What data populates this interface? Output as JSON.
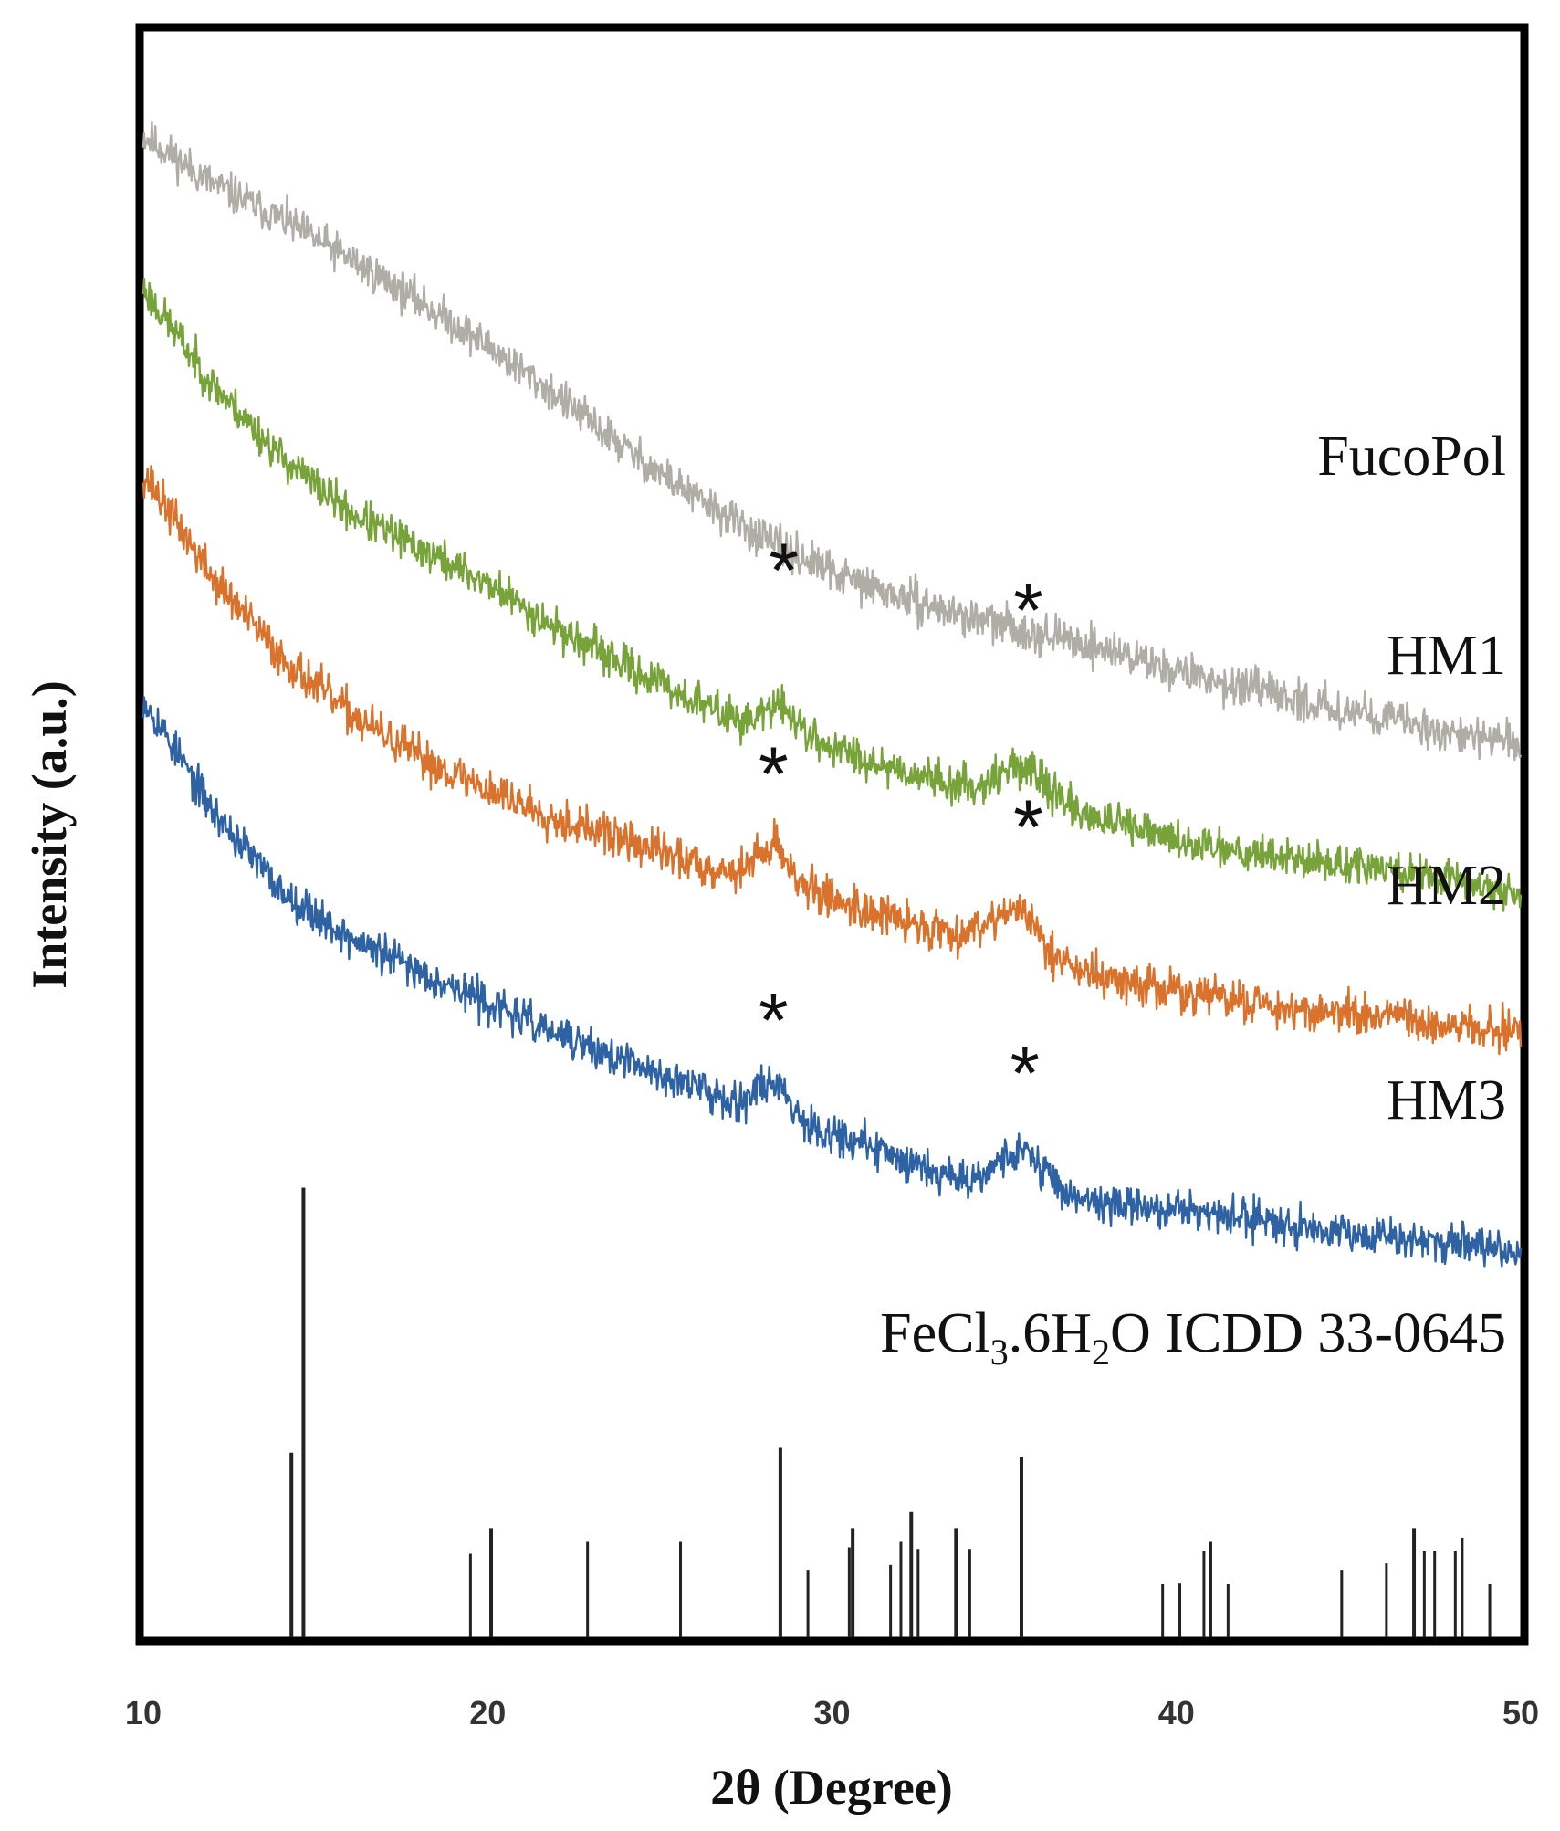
{
  "chart_data": {
    "type": "line",
    "title": "",
    "xlabel": "2θ (Degree)",
    "ylabel": "Intensity (a.u.)",
    "xlim": [
      10,
      50
    ],
    "ylim": [
      0,
      100
    ],
    "x_ticks": [
      10,
      20,
      30,
      40,
      50
    ],
    "x_tick_labels": [
      "10",
      "20",
      "30",
      "40",
      "50"
    ],
    "grid": false,
    "series": [
      {
        "name": "FucoPol",
        "label": "FucoPol",
        "color": "#b0ada6",
        "noise": 1.2,
        "seed": 11,
        "baseline": [
          [
            10,
            93.5
          ],
          [
            12,
            90.5
          ],
          [
            14,
            88.3
          ],
          [
            16,
            85.8
          ],
          [
            18,
            83.2
          ],
          [
            20,
            80.4
          ],
          [
            22,
            77.3
          ],
          [
            24,
            74.0
          ],
          [
            26,
            71.0
          ],
          [
            28,
            68.4
          ],
          [
            30,
            66.3
          ],
          [
            32,
            64.7
          ],
          [
            34,
            63.5
          ],
          [
            36,
            62.5
          ],
          [
            38,
            61.5
          ],
          [
            40,
            60.2
          ],
          [
            42,
            59.1
          ],
          [
            44,
            58.1
          ],
          [
            46,
            57.3
          ],
          [
            48,
            56.3
          ],
          [
            50,
            55.6
          ]
        ],
        "peaks": []
      },
      {
        "name": "HM1",
        "label": "HM1",
        "color": "#77a33a",
        "noise": 1.2,
        "seed": 23,
        "baseline": [
          [
            10,
            84.0
          ],
          [
            12,
            78.0
          ],
          [
            14,
            73.5
          ],
          [
            16,
            70.0
          ],
          [
            18,
            67.8
          ],
          [
            20,
            65.6
          ],
          [
            22,
            62.8
          ],
          [
            24,
            60.5
          ],
          [
            26,
            58.3
          ],
          [
            28,
            56.4
          ],
          [
            30,
            55.4
          ],
          [
            32,
            54.0
          ],
          [
            34,
            52.8
          ],
          [
            36,
            52.1
          ],
          [
            38,
            50.8
          ],
          [
            40,
            49.6
          ],
          [
            42,
            49.0
          ],
          [
            44,
            48.3
          ],
          [
            46,
            47.8
          ],
          [
            48,
            47.2
          ],
          [
            50,
            46.3
          ]
        ],
        "peaks": [
          {
            "x": 28.5,
            "height": 1.8,
            "width": 0.5
          },
          {
            "x": 35.5,
            "height": 1.9,
            "width": 0.7
          }
        ]
      },
      {
        "name": "HM2",
        "label": "HM2",
        "color": "#d8722c",
        "noise": 1.3,
        "seed": 37,
        "baseline": [
          [
            10,
            72.5
          ],
          [
            12,
            66.0
          ],
          [
            14,
            61.0
          ],
          [
            16,
            57.5
          ],
          [
            18,
            54.8
          ],
          [
            20,
            52.8
          ],
          [
            22,
            51.0
          ],
          [
            24,
            49.6
          ],
          [
            26,
            48.2
          ],
          [
            28,
            47.2
          ],
          [
            30,
            46.0
          ],
          [
            32,
            44.6
          ],
          [
            34,
            43.6
          ],
          [
            36,
            42.2
          ],
          [
            38,
            41.0
          ],
          [
            40,
            40.2
          ],
          [
            42,
            39.6
          ],
          [
            44,
            39.0
          ],
          [
            46,
            38.6
          ],
          [
            48,
            38.0
          ],
          [
            50,
            37.8
          ]
        ],
        "peaks": [
          {
            "x": 28.3,
            "height": 2.3,
            "width": 0.45
          },
          {
            "x": 35.3,
            "height": 2.6,
            "width": 0.7
          }
        ]
      },
      {
        "name": "HM3",
        "label": "HM3",
        "color": "#2e62a3",
        "noise": 1.2,
        "seed": 53,
        "baseline": [
          [
            10,
            58.5
          ],
          [
            12,
            51.5
          ],
          [
            14,
            46.5
          ],
          [
            16,
            43.5
          ],
          [
            18,
            41.5
          ],
          [
            20,
            39.5
          ],
          [
            22,
            37.5
          ],
          [
            24,
            35.8
          ],
          [
            26,
            34.3
          ],
          [
            28,
            32.8
          ],
          [
            30,
            31.4
          ],
          [
            32,
            29.8
          ],
          [
            34,
            28.4
          ],
          [
            36,
            27.6
          ],
          [
            38,
            27.0
          ],
          [
            40,
            26.6
          ],
          [
            42,
            26.1
          ],
          [
            44,
            25.6
          ],
          [
            46,
            25.0
          ],
          [
            48,
            24.6
          ],
          [
            50,
            24.0
          ]
        ],
        "peaks": [
          {
            "x": 28.3,
            "height": 2.0,
            "width": 0.45
          },
          {
            "x": 35.5,
            "height": 2.4,
            "width": 0.7
          }
        ]
      }
    ],
    "annotations": [
      {
        "text": "*",
        "x": 28.6,
        "y": 66.5
      },
      {
        "text": "*",
        "x": 35.7,
        "y": 64.0
      },
      {
        "text": "*",
        "x": 28.3,
        "y": 53.8
      },
      {
        "text": "*",
        "x": 35.7,
        "y": 50.5
      },
      {
        "text": "*",
        "x": 28.3,
        "y": 38.5
      },
      {
        "text": "*",
        "x": 35.6,
        "y": 35.2
      }
    ],
    "reference": {
      "name": "FeCl3.6H2O ICDD 33-0645",
      "label_parts": [
        "FeCl",
        "3",
        ".6H",
        "2",
        "O ICDD 33-0645"
      ],
      "color": "#222222",
      "lines": [
        {
          "x": 14.3,
          "h": 11.5
        },
        {
          "x": 14.65,
          "h": 28.0
        },
        {
          "x": 19.5,
          "h": 5.2
        },
        {
          "x": 20.1,
          "h": 6.8
        },
        {
          "x": 22.9,
          "h": 6.0
        },
        {
          "x": 25.6,
          "h": 6.0
        },
        {
          "x": 28.5,
          "h": 11.8
        },
        {
          "x": 29.3,
          "h": 4.2
        },
        {
          "x": 30.5,
          "h": 5.6
        },
        {
          "x": 30.6,
          "h": 6.8
        },
        {
          "x": 31.7,
          "h": 4.5
        },
        {
          "x": 32.0,
          "h": 6.0
        },
        {
          "x": 32.3,
          "h": 7.8
        },
        {
          "x": 32.5,
          "h": 5.5
        },
        {
          "x": 33.6,
          "h": 6.8
        },
        {
          "x": 34.0,
          "h": 5.5
        },
        {
          "x": 35.5,
          "h": 11.2
        },
        {
          "x": 39.6,
          "h": 3.3
        },
        {
          "x": 40.1,
          "h": 3.4
        },
        {
          "x": 40.8,
          "h": 5.4
        },
        {
          "x": 41.0,
          "h": 6.0
        },
        {
          "x": 41.5,
          "h": 3.3
        },
        {
          "x": 44.8,
          "h": 4.2
        },
        {
          "x": 46.1,
          "h": 4.6
        },
        {
          "x": 46.9,
          "h": 6.8
        },
        {
          "x": 47.2,
          "h": 5.4
        },
        {
          "x": 47.5,
          "h": 5.4
        },
        {
          "x": 48.1,
          "h": 5.4
        },
        {
          "x": 48.3,
          "h": 6.2
        },
        {
          "x": 49.1,
          "h": 3.3
        }
      ]
    }
  }
}
